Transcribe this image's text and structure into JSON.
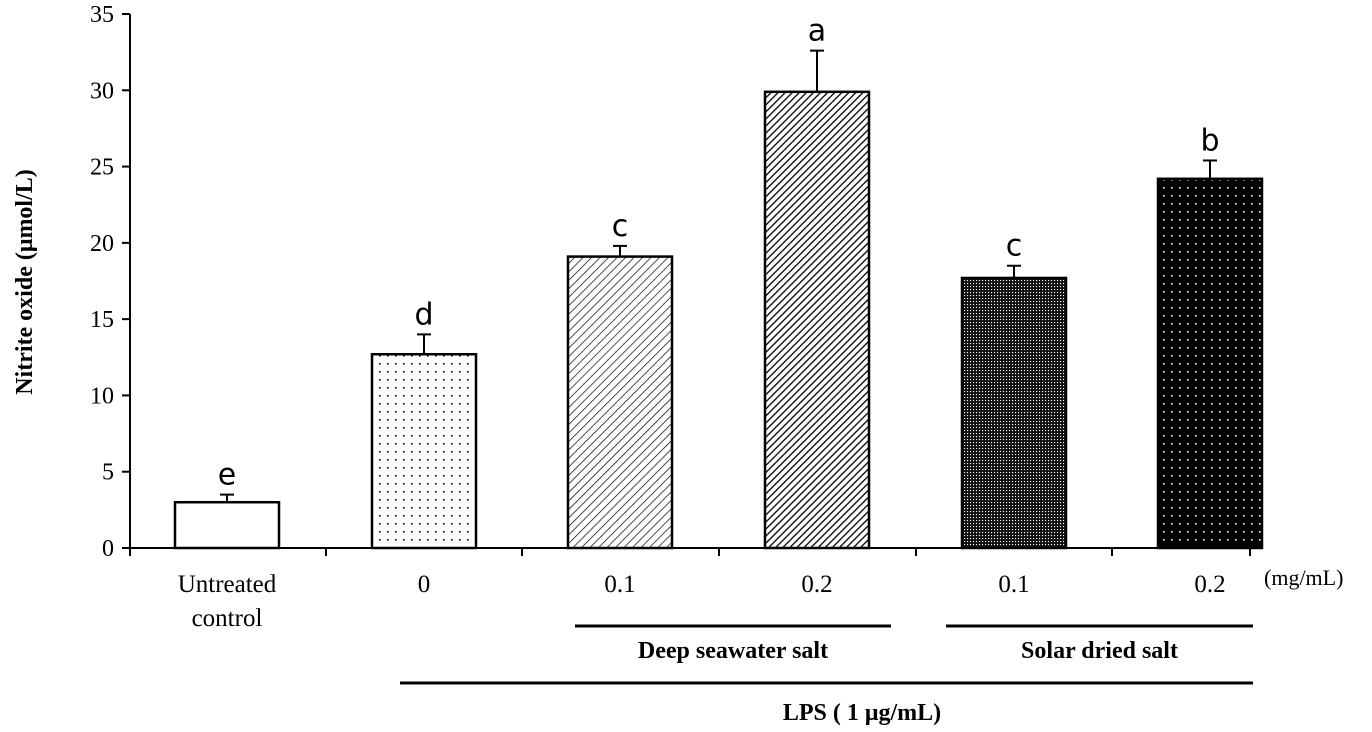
{
  "chart_data": {
    "type": "bar",
    "ylabel": "Nitrite oxide (μmol/L)",
    "ylim": [
      0,
      35
    ],
    "yticks": [
      0,
      5,
      10,
      15,
      20,
      25,
      30,
      35
    ],
    "unit_label": "(mg/mL)",
    "categories": [
      {
        "label_lines": [
          "Untreated",
          "control"
        ],
        "value": 3.0,
        "error": 0.5,
        "letter": "e",
        "pattern": "white"
      },
      {
        "label_lines": [
          "0"
        ],
        "value": 12.7,
        "error": 1.3,
        "letter": "d",
        "pattern": "sparse-dots"
      },
      {
        "label_lines": [
          "0.1"
        ],
        "value": 19.1,
        "error": 0.7,
        "letter": "c",
        "pattern": "diagonal-light"
      },
      {
        "label_lines": [
          "0.2"
        ],
        "value": 29.9,
        "error": 2.7,
        "letter": "a",
        "pattern": "diagonal-dense"
      },
      {
        "label_lines": [
          "0.1"
        ],
        "value": 17.7,
        "error": 0.8,
        "letter": "c",
        "pattern": "dense-dots"
      },
      {
        "label_lines": [
          "0.2"
        ],
        "value": 24.2,
        "error": 1.2,
        "letter": "b",
        "pattern": "black-dots"
      }
    ],
    "groups": [
      {
        "label": "Deep seawater salt",
        "from": 2,
        "to": 3
      },
      {
        "label": "Solar dried salt",
        "from": 4,
        "to": 5
      }
    ],
    "treatment": {
      "label": "LPS  ( 1 μg/mL)",
      "from": 1,
      "to": 5
    },
    "grid": false,
    "legend": "none"
  }
}
